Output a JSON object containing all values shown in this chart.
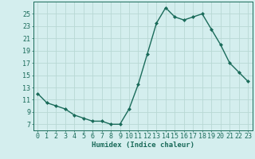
{
  "x": [
    0,
    1,
    2,
    3,
    4,
    5,
    6,
    7,
    8,
    9,
    10,
    11,
    12,
    13,
    14,
    15,
    16,
    17,
    18,
    19,
    20,
    21,
    22,
    23
  ],
  "y": [
    12,
    10.5,
    10,
    9.5,
    8.5,
    8,
    7.5,
    7.5,
    7,
    7,
    9.5,
    13.5,
    18.5,
    23.5,
    26,
    24.5,
    24,
    24.5,
    25,
    22.5,
    20,
    17,
    15.5,
    14
  ],
  "line_color": "#1a6b5a",
  "marker": "D",
  "markersize": 2.0,
  "linewidth": 1.0,
  "bg_color": "#d4eeee",
  "grid_color": "#b8d8d4",
  "xlabel": "Humidex (Indice chaleur)",
  "xlabel_fontsize": 6.5,
  "ylabel_ticks": [
    7,
    9,
    11,
    13,
    15,
    17,
    19,
    21,
    23,
    25
  ],
  "ylim": [
    6.0,
    27.0
  ],
  "xlim": [
    -0.5,
    23.5
  ],
  "tick_fontsize": 6.0
}
